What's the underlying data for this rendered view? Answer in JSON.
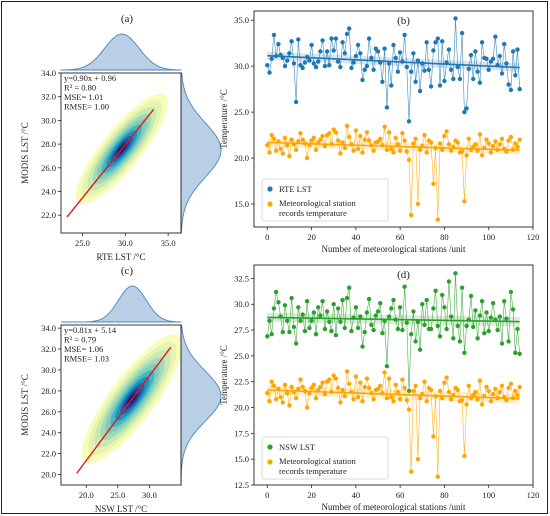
{
  "chart_data": [
    {
      "type": "density-scatter",
      "panel": "(a)",
      "xlabel": "RTE LST /°C",
      "ylabel": "MODIS LST /°C",
      "xlim": [
        22.5,
        36.5
      ],
      "ylim": [
        20.5,
        34.0
      ],
      "xticks": [
        "25.0",
        "30.0",
        "35.0"
      ],
      "yticks": [
        "22.0",
        "24.0",
        "26.0",
        "28.0",
        "30.0",
        "32.0",
        "34.0"
      ],
      "fit": {
        "slope": 0.9,
        "intercept": 0.96,
        "x_range": [
          23.2,
          33.3
        ]
      },
      "stats": [
        "y=0.90x + 0.96",
        "R² = 0.80",
        "MSE= 1.01",
        "RMSE= 1.00"
      ],
      "marginal_x": {
        "mean": 29.6,
        "sd": 2.0
      },
      "marginal_y": {
        "mean": 27.5,
        "sd": 2.3
      },
      "colors": {
        "fit_line": "#e31a1c",
        "marginal": "#b9cfe6",
        "marginal_edge": "#4f86b8"
      }
    },
    {
      "type": "line",
      "panel": "(b)",
      "xlabel": "Number of meteorological stations /unit",
      "ylabel": "Temperature /°C",
      "xlim": [
        -6,
        120
      ],
      "ylim": [
        12.5,
        36
      ],
      "xticks": [
        0,
        20,
        40,
        60,
        80,
        100,
        120
      ],
      "yticks": [
        "15.0",
        "20.0",
        "25.0",
        "30.0",
        "35.0"
      ],
      "legend_loc": "lower-left",
      "series": [
        {
          "name": "RTE LST",
          "color": "#1f77b4",
          "values": [
            30.1,
            29.3,
            30.8,
            33.4,
            31.1,
            32.4,
            31.2,
            30.9,
            30.0,
            30.6,
            31.4,
            32.7,
            30.3,
            26.1,
            32.9,
            30.1,
            29.8,
            30.4,
            31.0,
            30.6,
            32.3,
            30.3,
            29.9,
            30.5,
            31.6,
            32.8,
            30.0,
            31.6,
            30.1,
            33.0,
            31.7,
            33.0,
            30.5,
            29.9,
            32.6,
            31.4,
            33.5,
            34.1,
            29.8,
            30.4,
            31.1,
            32.3,
            31.4,
            28.5,
            29.6,
            30.0,
            33.0,
            30.9,
            29.6,
            31.9,
            31.6,
            30.4,
            28.3,
            31.9,
            25.5,
            30.3,
            27.9,
            32.3,
            30.9,
            29.4,
            31.5,
            30.5,
            33.4,
            29.9,
            24.0,
            29.4,
            31.4,
            28.3,
            30.6,
            27.3,
            30.3,
            29.5,
            32.6,
            29.6,
            27.8,
            31.7,
            32.6,
            33.0,
            27.9,
            32.7,
            28.4,
            30.4,
            31.8,
            29.6,
            28.6,
            35.2,
            29.9,
            28.6,
            33.6,
            25.0,
            25.4,
            29.7,
            31.2,
            28.6,
            31.6,
            29.4,
            28.2,
            32.6,
            30.9,
            30.8,
            29.6,
            30.5,
            30.8,
            33.2,
            30.1,
            31.1,
            29.2,
            32.4,
            30.3,
            28.0,
            27.4,
            31.6,
            29.0,
            31.8,
            27.5
          ]
        },
        {
          "name": "Meteorological station records temperature",
          "color": "#ffa500",
          "values": [
            21.4,
            20.6,
            22.5,
            22.1,
            20.8,
            21.8,
            21.0,
            20.5,
            22.2,
            21.4,
            20.2,
            22.0,
            21.5,
            20.9,
            21.8,
            22.7,
            22.0,
            21.6,
            20.0,
            21.4,
            21.9,
            22.2,
            20.9,
            21.7,
            22.0,
            22.4,
            21.3,
            22.5,
            22.7,
            21.5,
            23.1,
            22.8,
            21.9,
            20.5,
            21.7,
            21.1,
            23.5,
            22.3,
            21.5,
            20.8,
            23.0,
            21.0,
            22.4,
            20.6,
            22.0,
            22.8,
            21.9,
            21.4,
            20.8,
            21.7,
            21.8,
            22.1,
            21.4,
            23.4,
            20.9,
            22.8,
            21.0,
            20.6,
            22.2,
            21.5,
            20.8,
            22.7,
            21.9,
            20.7,
            19.8,
            13.8,
            21.6,
            22.1,
            15.0,
            20.9,
            21.3,
            22.5,
            20.6,
            21.9,
            21.7,
            17.2,
            21.1,
            13.3,
            21.6,
            20.9,
            22.4,
            22.9,
            21.5,
            20.8,
            21.2,
            21.9,
            21.7,
            20.6,
            20.7,
            15.3,
            20.3,
            22.1,
            20.9,
            21.2,
            21.5,
            20.8,
            22.6,
            20.3,
            21.1,
            22.0,
            21.6,
            20.6,
            21.3,
            21.8,
            20.9,
            21.5,
            22.1,
            21.0,
            20.7,
            21.9,
            22.3,
            20.9,
            21.6,
            21.2,
            22.0
          ]
        }
      ]
    },
    {
      "type": "density-scatter",
      "panel": "(c)",
      "xlabel": "NSW LST /°C",
      "ylabel": "MODIS LST /°C",
      "xlim": [
        16.0,
        35.0
      ],
      "ylim": [
        19.0,
        34.3
      ],
      "xticks": [
        "20.0",
        "25.0",
        "30.0"
      ],
      "yticks": [
        "20.0",
        "22.0",
        "24.0",
        "26.0",
        "28.0",
        "30.0",
        "32.0",
        "34.0"
      ],
      "fit": {
        "slope": 0.81,
        "intercept": 5.14,
        "x_range": [
          18.5,
          33.4
        ]
      },
      "stats": [
        "y=0.81x + 5.14",
        "R² = 0.79",
        "MSE= 1.06",
        "RMSE= 1.03"
      ],
      "marginal_x": {
        "mean": 27.3,
        "sd": 2.2
      },
      "marginal_y": {
        "mean": 27.5,
        "sd": 2.4
      },
      "colors": {
        "fit_line": "#e31a1c",
        "marginal": "#b9cfe6",
        "marginal_edge": "#4f86b8"
      }
    },
    {
      "type": "line",
      "panel": "(d)",
      "xlabel": "Number of meteorological stations /unit",
      "ylabel": "Temperature /°C",
      "xlim": [
        -6,
        120
      ],
      "ylim": [
        12.5,
        33.8
      ],
      "xticks": [
        0,
        20,
        40,
        60,
        80,
        100,
        120
      ],
      "yticks": [
        "12.5",
        "15.0",
        "17.5",
        "20.0",
        "22.5",
        "25.0",
        "27.5",
        "30.0",
        "32.5"
      ],
      "legend_loc": "lower-left",
      "series": [
        {
          "name": "NSW LST",
          "color": "#2ca02c",
          "values": [
            26.9,
            28.4,
            27.1,
            29.6,
            31.2,
            30.2,
            28.8,
            27.3,
            29.9,
            28.4,
            27.3,
            30.6,
            27.8,
            26.2,
            29.7,
            28.4,
            29.0,
            27.4,
            30.3,
            27.7,
            28.4,
            29.2,
            27.1,
            29.7,
            28.9,
            30.3,
            27.6,
            29.3,
            28.3,
            27.4,
            30.0,
            27.0,
            29.6,
            28.3,
            30.4,
            27.7,
            30.6,
            31.6,
            27.4,
            28.7,
            29.7,
            27.7,
            28.8,
            25.9,
            27.3,
            29.2,
            30.5,
            28.0,
            27.5,
            28.9,
            29.3,
            30.1,
            27.2,
            28.4,
            24.0,
            28.8,
            29.6,
            30.4,
            28.5,
            27.6,
            29.7,
            27.5,
            31.7,
            28.2,
            21.6,
            27.1,
            29.3,
            26.4,
            28.3,
            25.6,
            30.0,
            28.0,
            30.4,
            27.6,
            27.6,
            29.6,
            31.3,
            27.9,
            26.9,
            30.9,
            29.7,
            27.6,
            32.2,
            28.8,
            26.7,
            33.0,
            27.9,
            26.4,
            31.6,
            25.3,
            27.9,
            28.5,
            30.8,
            27.8,
            29.4,
            26.7,
            28.9,
            30.3,
            27.2,
            29.2,
            27.4,
            28.7,
            30.1,
            28.5,
            27.5,
            28.8,
            26.2,
            30.3,
            28.6,
            26.4,
            31.2,
            29.5,
            25.3,
            27.6,
            25.2
          ]
        },
        {
          "name": "Meteorological station records temperature",
          "color": "#ffa500",
          "values": [
            21.4,
            20.6,
            22.5,
            22.1,
            20.8,
            21.8,
            21.0,
            20.5,
            22.2,
            21.4,
            20.2,
            22.0,
            21.5,
            20.9,
            21.8,
            22.7,
            22.0,
            21.6,
            20.0,
            21.4,
            21.9,
            22.2,
            20.9,
            21.7,
            22.0,
            22.4,
            21.3,
            22.5,
            22.7,
            21.5,
            23.1,
            22.8,
            21.9,
            20.5,
            21.7,
            21.1,
            23.5,
            22.3,
            21.5,
            20.8,
            23.0,
            21.0,
            22.4,
            20.6,
            22.0,
            22.8,
            21.9,
            21.4,
            20.8,
            21.7,
            21.8,
            22.1,
            21.4,
            23.4,
            20.9,
            22.8,
            21.0,
            20.6,
            22.2,
            21.5,
            20.8,
            22.7,
            21.9,
            20.7,
            19.8,
            13.8,
            21.6,
            22.1,
            15.0,
            20.9,
            21.3,
            22.5,
            20.6,
            21.9,
            21.7,
            17.2,
            21.1,
            13.3,
            21.6,
            20.9,
            22.4,
            22.9,
            21.5,
            20.8,
            21.2,
            21.9,
            21.7,
            20.6,
            20.7,
            15.3,
            20.3,
            22.1,
            20.9,
            21.2,
            21.5,
            20.8,
            22.6,
            20.3,
            21.1,
            22.0,
            21.6,
            20.6,
            21.3,
            21.8,
            20.9,
            21.5,
            22.1,
            21.0,
            20.7,
            21.9,
            22.3,
            20.9,
            21.6,
            21.2,
            22.0
          ]
        }
      ]
    }
  ]
}
